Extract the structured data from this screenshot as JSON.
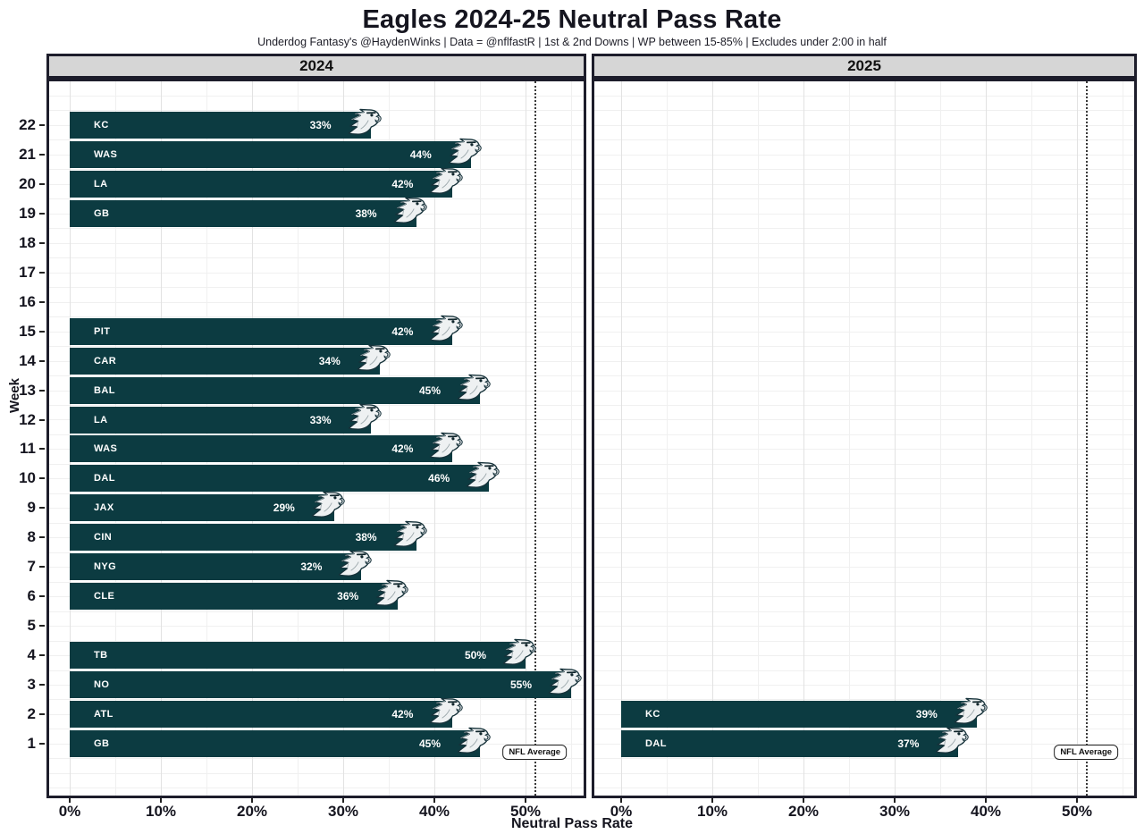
{
  "colors": {
    "bar": "#0c3b41",
    "title_text": "#15151f",
    "strip_bg": "#d6d6d6",
    "panel_border": "#1d1d2b",
    "grid_major": "#e2e2e2",
    "grid_minor": "#f0f0f0",
    "avg_line": "#3a3a3a",
    "bar_label": "#ffffff"
  },
  "chart_data": {
    "type": "bar",
    "orientation": "horizontal",
    "title": "Eagles 2024-25 Neutral Pass Rate",
    "subtitle": "Underdog Fantasy's @HaydenWinks | Data = @nflfastR | 1st & 2nd Downs | WP between 15-85% | Excludes under 2:00 in half",
    "xlabel": "Neutral Pass Rate",
    "ylabel": "Week",
    "x_tick_labels": [
      "0%",
      "10%",
      "20%",
      "30%",
      "40%",
      "50%"
    ],
    "x_tick_values": [
      0,
      10,
      20,
      30,
      40,
      50
    ],
    "xlim": [
      -2.5,
      57
    ],
    "week_ticks": [
      1,
      2,
      3,
      4,
      5,
      6,
      7,
      8,
      9,
      10,
      11,
      12,
      13,
      14,
      15,
      16,
      17,
      18,
      19,
      20,
      21,
      22
    ],
    "nfl_average_pct": 51,
    "nfl_average_label": "NFL Average",
    "grid": true,
    "legend": null,
    "facets": [
      {
        "name": "2024",
        "bars": [
          {
            "week": 22,
            "team": "KC",
            "value": 33
          },
          {
            "week": 21,
            "team": "WAS",
            "value": 44
          },
          {
            "week": 20,
            "team": "LA",
            "value": 42
          },
          {
            "week": 19,
            "team": "GB",
            "value": 38
          },
          {
            "week": 15,
            "team": "PIT",
            "value": 42
          },
          {
            "week": 14,
            "team": "CAR",
            "value": 34
          },
          {
            "week": 13,
            "team": "BAL",
            "value": 45
          },
          {
            "week": 12,
            "team": "LA",
            "value": 33
          },
          {
            "week": 11,
            "team": "WAS",
            "value": 42
          },
          {
            "week": 10,
            "team": "DAL",
            "value": 46
          },
          {
            "week": 9,
            "team": "JAX",
            "value": 29
          },
          {
            "week": 8,
            "team": "CIN",
            "value": 38
          },
          {
            "week": 7,
            "team": "NYG",
            "value": 32
          },
          {
            "week": 6,
            "team": "CLE",
            "value": 36
          },
          {
            "week": 4,
            "team": "TB",
            "value": 50
          },
          {
            "week": 3,
            "team": "NO",
            "value": 55
          },
          {
            "week": 2,
            "team": "ATL",
            "value": 42
          },
          {
            "week": 1,
            "team": "GB",
            "value": 45
          }
        ]
      },
      {
        "name": "2025",
        "bars": [
          {
            "week": 2,
            "team": "KC",
            "value": 39
          },
          {
            "week": 1,
            "team": "DAL",
            "value": 37
          }
        ]
      }
    ]
  }
}
